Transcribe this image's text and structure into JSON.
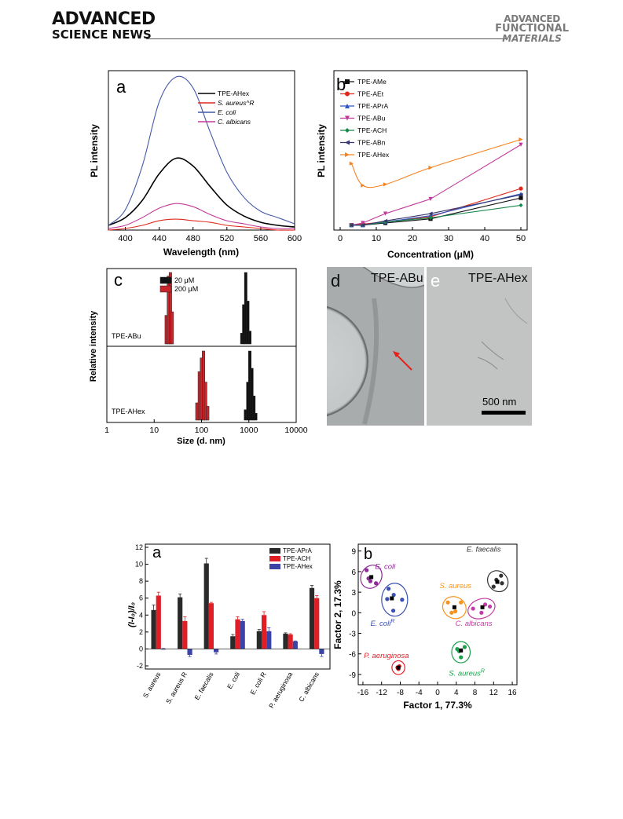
{
  "header": {
    "journal_left_line1": "ADVANCED",
    "journal_left_line2": "SCIENCE NEWS",
    "journal_right_line1": "ADVANCED",
    "journal_right_line2": "FUNCTIONAL",
    "journal_right_line3": "MATERIALS"
  },
  "figure1": {
    "panel_a": {
      "letter": "a",
      "xlabel": "Wavelength (nm)",
      "ylabel": "PL intensity"
    },
    "panel_b": {
      "letter": "b",
      "xlabel": "Concentration (μM)",
      "ylabel": "PL intensity"
    },
    "panel_c": {
      "letter": "c",
      "xlabel": "Size  (d. nm)",
      "ylabel": "Relative intensity",
      "label_top": "TPE-ABu",
      "label_bottom": "TPE-AHex"
    },
    "panel_d": {
      "letter": "d",
      "label": "TPE-ABu"
    },
    "panel_e": {
      "letter": "e",
      "label": "TPE-AHex",
      "scalebar": "500 nm"
    }
  },
  "figure2": {
    "panel_a": {
      "letter": "a",
      "ylabel": "(I-I₀)/I₀"
    },
    "panel_b": {
      "letter": "b",
      "xlabel": "Factor 1, 77.3%",
      "ylabel": "Factor 2, 17.3%"
    }
  },
  "chart_data": [
    {
      "id": "fig1a",
      "type": "line",
      "xlabel": "Wavelength (nm)",
      "ylabel": "PL intensity",
      "xlim": [
        380,
        600
      ],
      "ylim": [
        0,
        100
      ],
      "xticks": [
        400,
        440,
        480,
        520,
        560,
        600
      ],
      "legend_position": "top-right",
      "series": [
        {
          "name": "TPE-AHex",
          "color": "#000000",
          "peak_x": 460,
          "peak_y": 46,
          "x": [
            380,
            400,
            420,
            440,
            460,
            480,
            500,
            520,
            540,
            560,
            580,
            600
          ],
          "y": [
            3,
            8,
            19,
            36,
            46,
            41,
            28,
            16,
            9,
            5,
            3,
            2
          ]
        },
        {
          "name": "S. aureus^R",
          "color": "#e0291c",
          "peak_x": 460,
          "peak_y": 7,
          "x": [
            380,
            400,
            420,
            440,
            460,
            480,
            500,
            520,
            540,
            560,
            580,
            600
          ],
          "y": [
            0,
            1,
            3,
            6,
            7,
            6,
            5,
            3,
            2,
            1,
            0,
            0
          ]
        },
        {
          "name": "E. coli",
          "color": "#4459a8",
          "peak_x": 460,
          "peak_y": 98,
          "x": [
            380,
            400,
            420,
            440,
            460,
            480,
            500,
            520,
            540,
            560,
            580,
            600
          ],
          "y": [
            3,
            13,
            41,
            82,
            98,
            91,
            63,
            37,
            21,
            12,
            8,
            4
          ]
        },
        {
          "name": "C. albicans",
          "color": "#c0389a",
          "peak_x": 460,
          "peak_y": 17,
          "x": [
            380,
            400,
            420,
            440,
            460,
            480,
            500,
            520,
            540,
            560,
            580,
            600
          ],
          "y": [
            1,
            3,
            8,
            14,
            17,
            15,
            10,
            6,
            4,
            2,
            1,
            1
          ]
        }
      ]
    },
    {
      "id": "fig1b",
      "type": "line",
      "xlabel": "Concentration (μM)",
      "ylabel": "PL intensity",
      "xlim": [
        0,
        50
      ],
      "ylim": [
        0,
        100
      ],
      "xticks": [
        0,
        10,
        20,
        30,
        40,
        50
      ],
      "legend_position": "top-left",
      "x": [
        3.125,
        6.25,
        12.5,
        25,
        50
      ],
      "series": [
        {
          "name": "TPE-AMe",
          "color": "#111111",
          "marker": "square",
          "values": [
            1,
            1,
            3,
            7,
            27
          ]
        },
        {
          "name": "TPE-AEt",
          "color": "#e0291c",
          "marker": "circle",
          "values": [
            1,
            2,
            4,
            9,
            36
          ]
        },
        {
          "name": "TPE-APrA",
          "color": "#2e55c4",
          "marker": "triangle-up",
          "values": [
            1,
            1,
            4,
            10,
            31
          ]
        },
        {
          "name": "TPE-ABu",
          "color": "#c0389a",
          "marker": "triangle-down",
          "values": [
            1,
            3,
            12,
            26,
            78
          ]
        },
        {
          "name": "TPE-ACH",
          "color": "#17884b",
          "marker": "diamond",
          "values": [
            1,
            1,
            4,
            8,
            20
          ]
        },
        {
          "name": "TPE-ABn",
          "color": "#36366e",
          "marker": "triangle-left",
          "values": [
            1,
            1,
            5,
            12,
            30
          ]
        },
        {
          "name": "TPE-AHex",
          "color": "#f58220",
          "marker": "triangle-right",
          "values": [
            60,
            39,
            40,
            56,
            83
          ]
        }
      ]
    },
    {
      "id": "fig1c",
      "type": "bar",
      "xlabel": "Size  (d. nm)",
      "ylabel": "Relative intensity",
      "xscale": "log",
      "xlim": [
        1,
        10000
      ],
      "xticks": [
        "1",
        "10",
        "100",
        "1000",
        "10000"
      ],
      "legend": [
        "20 μM",
        "200 μM"
      ],
      "legend_colors": [
        "#111111",
        "#c8262b"
      ],
      "subplots": [
        {
          "label": "TPE-ABu",
          "series": [
            {
              "name": "200 μM",
              "x": [
                18,
                20,
                22,
                24
              ],
              "values": [
                40,
                95,
                100,
                45
              ]
            },
            {
              "name": "20 μM",
              "x": [
                710,
                780,
                860,
                950,
                1050
              ],
              "values": [
                15,
                55,
                100,
                60,
                18
              ]
            }
          ]
        },
        {
          "label": "TPE-AHex",
          "series": [
            {
              "name": "200 μM",
              "x": [
                80,
                90,
                100,
                110,
                122,
                135
              ],
              "values": [
                25,
                70,
                90,
                100,
                55,
                20
              ]
            },
            {
              "name": "20 μM",
              "x": [
                850,
                950,
                1050,
                1160,
                1280,
                1400
              ],
              "values": [
                15,
                55,
                100,
                75,
                35,
                10
              ]
            }
          ]
        }
      ]
    },
    {
      "id": "fig2a",
      "type": "bar",
      "ylabel": "(I-I₀)/I₀",
      "ylim": [
        -2,
        12
      ],
      "yticks": [
        -2,
        0,
        2,
        4,
        6,
        8,
        10,
        12
      ],
      "legend_position": "top-right",
      "categories": [
        "S. aureus",
        "S. aureus R",
        "E. faecalis",
        "E. coli",
        "E. coli R",
        "P. aeruginosa",
        "C. albicans"
      ],
      "series": [
        {
          "name": "TPE-APrA",
          "color": "#2a2a2a",
          "values": [
            4.6,
            6.1,
            10.1,
            1.5,
            2.1,
            1.8,
            7.2
          ],
          "errors": [
            0.6,
            0.4,
            0.6,
            0.2,
            0.2,
            0.1,
            0.3
          ]
        },
        {
          "name": "TPE-ACH",
          "color": "#e01e25",
          "values": [
            6.3,
            3.3,
            5.4,
            3.5,
            4.0,
            1.7,
            6.0
          ],
          "errors": [
            0.4,
            0.5,
            0.1,
            0.3,
            0.4,
            0.1,
            0.3
          ]
        },
        {
          "name": "TPE-AHex",
          "color": "#3b43a6",
          "values": [
            0.0,
            -0.7,
            -0.4,
            3.3,
            2.1,
            0.9,
            -0.6
          ],
          "errors": [
            0.05,
            0.2,
            0.2,
            0.2,
            0.4,
            0.05,
            0.3
          ]
        }
      ]
    },
    {
      "id": "fig2b",
      "type": "scatter",
      "xlabel": "Factor 1, 77.3%",
      "ylabel": "Factor 2, 17.3%",
      "xlim": [
        -17,
        17
      ],
      "ylim": [
        -10.5,
        10
      ],
      "xticks": [
        -16,
        -12,
        -8,
        -4,
        0,
        4,
        8,
        12,
        16
      ],
      "yticks": [
        -9,
        -6,
        -3,
        0,
        3,
        6,
        9
      ],
      "groups": [
        {
          "name": "E. coli",
          "color": "#8e2a96",
          "points": [
            [
              -15.2,
              6.2
            ],
            [
              -14.4,
              4.6
            ],
            [
              -13.2,
              4.3
            ],
            [
              -14.8,
              5.0
            ]
          ],
          "centroid": [
            -14.2,
            5.2
          ]
        },
        {
          "name": "E. coli^R",
          "color": "#3b50b0",
          "points": [
            [
              -10.5,
              3.5
            ],
            [
              -9.5,
              0.3
            ],
            [
              -7.6,
              1.9
            ],
            [
              -10.8,
              2.0
            ],
            [
              -9.4,
              2.6
            ]
          ],
          "centroid": [
            -9.8,
            2.1
          ]
        },
        {
          "name": "S. aureus",
          "color": "#f7941d",
          "points": [
            [
              2.2,
              1.5
            ],
            [
              3.8,
              0.2
            ],
            [
              5.0,
              1.5
            ],
            [
              3.0,
              0.0
            ]
          ],
          "centroid": [
            3.6,
            0.8
          ]
        },
        {
          "name": "E. faecalis",
          "color": "#333333",
          "points": [
            [
              12.0,
              3.8
            ],
            [
              13.6,
              5.4
            ],
            [
              12.6,
              4.8
            ],
            [
              13.8,
              4.3
            ]
          ],
          "centroid": [
            12.8,
            4.5
          ]
        },
        {
          "name": "C. albicans",
          "color": "#c53ba5",
          "points": [
            [
              7.6,
              0.6
            ],
            [
              10.2,
              1.2
            ],
            [
              11.2,
              0.9
            ],
            [
              9.4,
              0.0
            ]
          ],
          "centroid": [
            9.6,
            0.8
          ]
        },
        {
          "name": "P. aeruginosa",
          "color": "#e01e25",
          "points": [
            [
              -8.6,
              -8.0
            ],
            [
              -8.2,
              -7.8
            ],
            [
              -8.4,
              -8.2
            ]
          ],
          "centroid": [
            -8.4,
            -8.0
          ]
        },
        {
          "name": "S. aureus^R",
          "color": "#1aa04a",
          "points": [
            [
              4.2,
              -5.3
            ],
            [
              5.0,
              -6.5
            ],
            [
              5.8,
              -5.0
            ],
            [
              4.6,
              -5.6
            ]
          ],
          "centroid": [
            5.0,
            -5.5
          ]
        }
      ]
    }
  ]
}
